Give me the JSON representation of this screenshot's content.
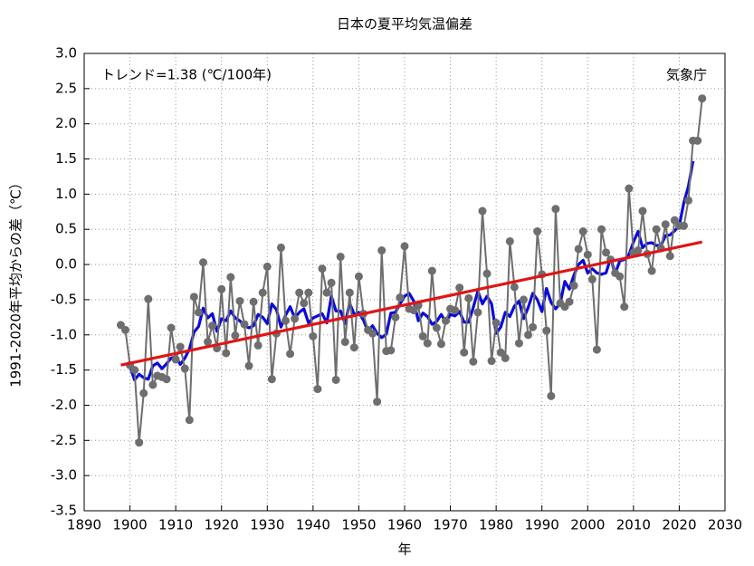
{
  "chart_data": {
    "type": "line",
    "title": "日本の夏平均気温偏差",
    "xlabel": "年",
    "ylabel": "1991-2020年平均からの差（℃）",
    "annotations": [
      "トレンド=1.38 (℃/100年)",
      "気象庁"
    ],
    "x": [
      1898,
      1899,
      1900,
      1901,
      1902,
      1903,
      1904,
      1905,
      1906,
      1907,
      1908,
      1909,
      1910,
      1911,
      1912,
      1913,
      1914,
      1915,
      1916,
      1917,
      1918,
      1919,
      1920,
      1921,
      1922,
      1923,
      1924,
      1925,
      1926,
      1927,
      1928,
      1929,
      1930,
      1931,
      1932,
      1933,
      1934,
      1935,
      1936,
      1937,
      1938,
      1939,
      1940,
      1941,
      1942,
      1943,
      1944,
      1945,
      1946,
      1947,
      1948,
      1949,
      1950,
      1951,
      1952,
      1953,
      1954,
      1955,
      1956,
      1957,
      1958,
      1959,
      1960,
      1961,
      1962,
      1963,
      1964,
      1965,
      1966,
      1967,
      1968,
      1969,
      1970,
      1971,
      1972,
      1973,
      1974,
      1975,
      1976,
      1977,
      1978,
      1979,
      1980,
      1981,
      1982,
      1983,
      1984,
      1985,
      1986,
      1987,
      1988,
      1989,
      1990,
      1991,
      1992,
      1993,
      1994,
      1995,
      1996,
      1997,
      1998,
      1999,
      2000,
      2001,
      2002,
      2003,
      2004,
      2005,
      2006,
      2007,
      2008,
      2009,
      2010,
      2011,
      2012,
      2013,
      2014,
      2015,
      2016,
      2017,
      2018,
      2019,
      2020,
      2021,
      2022,
      2023,
      2024,
      2025
    ],
    "series": [
      {
        "color": "#6e6e6e",
        "markers": true,
        "values": [
          -0.86,
          -0.93,
          -1.43,
          -1.5,
          -2.53,
          -1.83,
          -0.49,
          -1.71,
          -1.58,
          -1.6,
          -1.63,
          -0.9,
          -1.35,
          -1.17,
          -1.48,
          -2.21,
          -0.46,
          -0.68,
          0.03,
          -1.1,
          -0.87,
          -1.19,
          -0.35,
          -1.26,
          -0.18,
          -1.01,
          -0.52,
          -0.85,
          -1.44,
          -0.53,
          -1.15,
          -0.4,
          -0.03,
          -1.63,
          -0.98,
          0.24,
          -0.8,
          -1.27,
          -0.77,
          -0.4,
          -0.55,
          -0.4,
          -1.02,
          -1.77,
          -0.06,
          -0.4,
          -0.26,
          -1.64,
          0.11,
          -1.1,
          -0.4,
          -1.18,
          -0.17,
          -0.7,
          -0.93,
          -0.98,
          -1.95,
          0.2,
          -1.23,
          -1.22,
          -0.75,
          -0.47,
          0.26,
          -0.63,
          -0.65,
          -0.58,
          -1.02,
          -1.12,
          -0.09,
          -0.9,
          -1.13,
          -0.8,
          -0.63,
          -0.65,
          -0.33,
          -1.25,
          -0.48,
          -1.38,
          -0.68,
          0.76,
          -0.13,
          -1.37,
          -0.83,
          -1.25,
          -1.33,
          0.33,
          -0.32,
          -1.12,
          -0.5,
          -1.0,
          -0.89,
          0.47,
          -0.14,
          -0.94,
          -1.87,
          0.79,
          -0.55,
          -0.6,
          -0.53,
          -0.3,
          0.22,
          0.47,
          0.14,
          -0.21,
          -1.21,
          0.5,
          0.17,
          0.07,
          -0.12,
          -0.17,
          -0.6,
          1.08,
          0.17,
          0.2,
          0.76,
          0.15,
          -0.09,
          0.5,
          0.23,
          0.57,
          0.12,
          0.63,
          0.55,
          0.55,
          0.91,
          1.76,
          1.76,
          2.36
        ]
      },
      {
        "color": "#0a0adc",
        "markers": false,
        "values": [
          null,
          null,
          -1.45,
          -1.64,
          -1.56,
          -1.61,
          -1.63,
          -1.44,
          -1.4,
          -1.48,
          -1.41,
          -1.33,
          -1.31,
          -1.42,
          -1.33,
          -1.2,
          -0.96,
          -0.88,
          -0.62,
          -0.76,
          -0.7,
          -0.95,
          -0.77,
          -0.8,
          -0.66,
          -0.76,
          -0.8,
          -0.87,
          -0.9,
          -0.87,
          -0.71,
          -0.75,
          -0.84,
          -0.56,
          -0.64,
          -0.89,
          -0.72,
          -0.6,
          -0.76,
          -0.68,
          -0.63,
          -0.83,
          -0.76,
          -0.73,
          -0.7,
          -0.83,
          -0.45,
          -0.66,
          -0.66,
          -0.84,
          -0.55,
          -0.71,
          -0.68,
          -0.79,
          -0.95,
          -0.87,
          -0.98,
          -1.04,
          -0.99,
          -0.69,
          -0.68,
          -0.56,
          -0.45,
          -0.41,
          -0.52,
          -0.8,
          -0.69,
          -0.74,
          -0.85,
          -0.81,
          -0.71,
          -0.82,
          -0.71,
          -0.73,
          -0.67,
          -0.82,
          -0.82,
          -0.61,
          -0.38,
          -0.56,
          -0.45,
          -0.56,
          -0.98,
          -0.89,
          -0.68,
          -0.74,
          -0.59,
          -0.52,
          -0.77,
          -0.61,
          -0.41,
          -0.5,
          -0.67,
          -0.34,
          -0.54,
          -0.63,
          -0.55,
          -0.24,
          -0.35,
          -0.15,
          0.0,
          0.06,
          -0.12,
          -0.06,
          -0.12,
          -0.14,
          -0.12,
          0.09,
          -0.13,
          0.05,
          0.07,
          0.14,
          0.32,
          0.47,
          0.24,
          0.3,
          0.31,
          0.27,
          0.27,
          0.41,
          0.42,
          0.48,
          0.55,
          0.88,
          1.11,
          1.47,
          null,
          null
        ]
      },
      {
        "color": "#e01515",
        "markers": false,
        "x": [
          1898,
          2025
        ],
        "values": [
          -1.43,
          0.32
        ]
      }
    ],
    "xlim": [
      1890,
      2030
    ],
    "xticks": [
      1890,
      1900,
      1910,
      1920,
      1930,
      1940,
      1950,
      1960,
      1970,
      1980,
      1990,
      2000,
      2010,
      2020,
      2030
    ],
    "ylim": [
      -3.5,
      3.0
    ],
    "yticks": [
      {
        "value": 3,
        "label": "3.0"
      },
      2.5,
      {
        "value": 2,
        "label": "2.0"
      },
      1.5,
      {
        "value": 1,
        "label": "1.0"
      },
      0.5,
      {
        "value": 0,
        "label": "0.0"
      },
      -0.5,
      {
        "value": -1,
        "label": "-1.0"
      },
      -1.5,
      {
        "value": -2,
        "label": "-2.0"
      },
      -2.5,
      {
        "value": -3,
        "label": "-3.0"
      },
      -3.5
    ],
    "grid": true
  }
}
